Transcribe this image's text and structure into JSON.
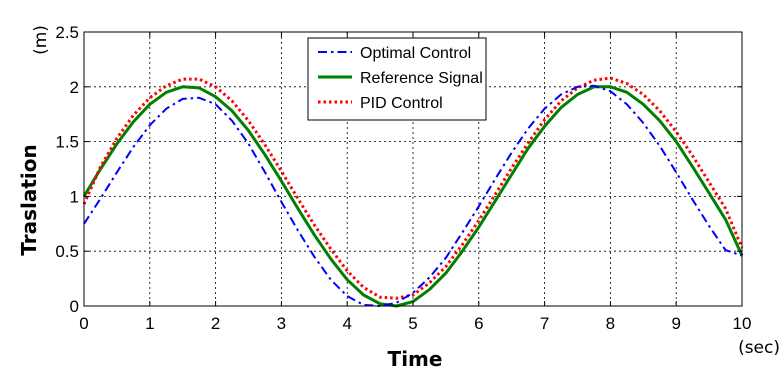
{
  "chart_data": {
    "type": "line",
    "title": "",
    "xlabel": "Time",
    "xunit": "(sec)",
    "ylabel": "Traslation",
    "yunit": "(m)",
    "xlim": [
      0,
      10
    ],
    "ylim": [
      0,
      2.5
    ],
    "xticks": [
      0,
      1,
      2,
      3,
      4,
      5,
      6,
      7,
      8,
      9,
      10
    ],
    "xtick_labels": [
      "0",
      "1",
      "2",
      "3",
      "4",
      "5",
      "6",
      "7",
      "8",
      "9",
      "10"
    ],
    "yticks": [
      0,
      0.5,
      1,
      1.5,
      2,
      2.5
    ],
    "ytick_labels": [
      "0",
      "0.5",
      "1",
      "1.5",
      "2",
      "2.5"
    ],
    "grid": true,
    "legend_position": "top-center",
    "x": [
      0,
      0.25,
      0.5,
      0.75,
      1,
      1.25,
      1.5,
      1.75,
      2,
      2.25,
      2.5,
      2.75,
      3,
      3.25,
      3.5,
      3.75,
      4,
      4.25,
      4.5,
      4.75,
      5,
      5.25,
      5.5,
      5.75,
      6,
      6.25,
      6.5,
      6.75,
      7,
      7.25,
      7.5,
      7.75,
      8,
      8.25,
      8.5,
      8.75,
      9,
      9.25,
      9.5,
      9.75,
      10
    ],
    "series": [
      {
        "name": "Optimal Control",
        "color": "#0000ff",
        "dash": "dashdot",
        "values": [
          0.75,
          0.98,
          1.22,
          1.45,
          1.65,
          1.8,
          1.89,
          1.9,
          1.84,
          1.69,
          1.48,
          1.22,
          0.95,
          0.69,
          0.45,
          0.24,
          0.09,
          0.01,
          0.0,
          0.03,
          0.12,
          0.26,
          0.44,
          0.67,
          0.91,
          1.16,
          1.4,
          1.62,
          1.8,
          1.93,
          2.0,
          2.01,
          1.96,
          1.84,
          1.67,
          1.46,
          1.22,
          0.97,
          0.73,
          0.51,
          0.46
        ]
      },
      {
        "name": "Reference Signal",
        "color": "#008000",
        "dash": "solid",
        "values": [
          1.0,
          1.25,
          1.48,
          1.68,
          1.84,
          1.95,
          2.0,
          1.99,
          1.91,
          1.78,
          1.6,
          1.38,
          1.14,
          0.89,
          0.65,
          0.43,
          0.24,
          0.1,
          0.02,
          0.0,
          0.04,
          0.15,
          0.3,
          0.5,
          0.72,
          0.96,
          1.2,
          1.44,
          1.64,
          1.81,
          1.93,
          2.0,
          2.0,
          1.95,
          1.84,
          1.69,
          1.5,
          1.27,
          1.03,
          0.79,
          0.46
        ]
      },
      {
        "name": "PID Control",
        "color": "#ff0000",
        "dash": "dotted",
        "values": [
          0.93,
          1.27,
          1.53,
          1.74,
          1.9,
          2.01,
          2.07,
          2.07,
          2.0,
          1.87,
          1.69,
          1.47,
          1.23,
          0.98,
          0.74,
          0.52,
          0.32,
          0.17,
          0.08,
          0.07,
          0.1,
          0.21,
          0.36,
          0.56,
          0.78,
          1.02,
          1.26,
          1.49,
          1.7,
          1.87,
          1.99,
          2.06,
          2.08,
          2.03,
          1.93,
          1.78,
          1.59,
          1.37,
          1.13,
          0.89,
          0.53
        ]
      }
    ]
  }
}
